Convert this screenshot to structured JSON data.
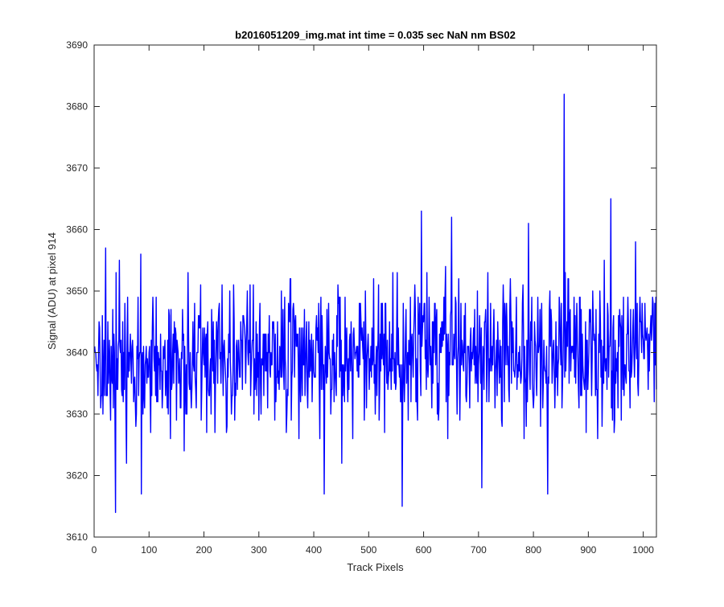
{
  "figure": {
    "background": "#ffffff",
    "axis_color": "#262626",
    "line_color": "#0000ff"
  },
  "chart_data": {
    "type": "line",
    "title": "b2016051209_img.mat int time = 0.035 sec  NaN nm BS02",
    "xlabel": "Track Pixels",
    "ylabel": "Signal (ADU) at pixel 914",
    "xlim": [
      0,
      1024
    ],
    "ylim": [
      3610,
      3690
    ],
    "xticks": [
      0,
      100,
      200,
      300,
      400,
      500,
      600,
      700,
      800,
      900,
      1000
    ],
    "yticks": [
      3610,
      3620,
      3630,
      3640,
      3650,
      3660,
      3670,
      3680,
      3690
    ],
    "grid": false,
    "legend": "none",
    "series": [
      {
        "color": "#0000ff",
        "n_points": 1024,
        "baseline_mean": 3638.5,
        "baseline_mean_end": 3641,
        "noise_spread": 5.5,
        "low_outliers": [
          {
            "x": 38,
            "y": 3614
          },
          {
            "x": 58,
            "y": 3622
          },
          {
            "x": 85,
            "y": 3617
          },
          {
            "x": 418,
            "y": 3617
          },
          {
            "x": 560,
            "y": 3615
          },
          {
            "x": 705,
            "y": 3618
          },
          {
            "x": 825,
            "y": 3617
          }
        ],
        "high_outliers": [
          {
            "x": 20,
            "y": 3657
          },
          {
            "x": 45,
            "y": 3655
          },
          {
            "x": 595,
            "y": 3663
          },
          {
            "x": 650,
            "y": 3662
          },
          {
            "x": 790,
            "y": 3661
          },
          {
            "x": 855,
            "y": 3682
          },
          {
            "x": 940,
            "y": 3665
          },
          {
            "x": 985,
            "y": 3658
          }
        ]
      }
    ]
  }
}
